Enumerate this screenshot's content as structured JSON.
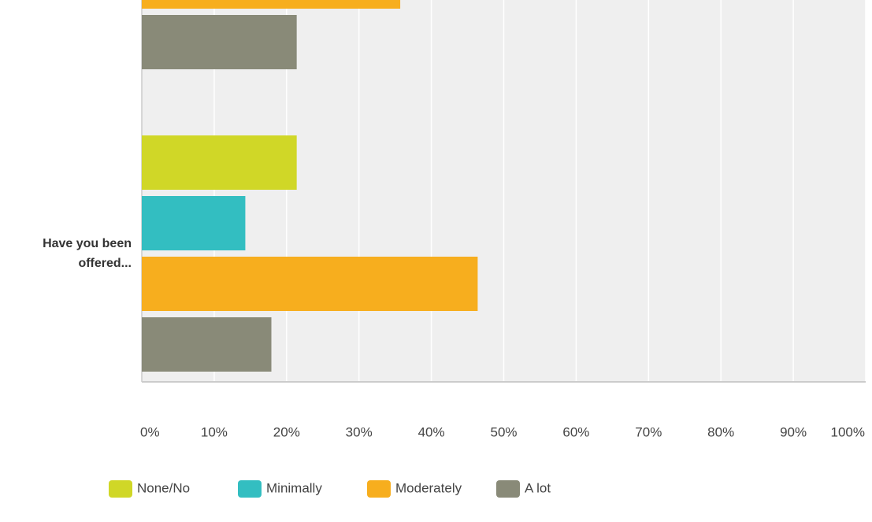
{
  "chart_data": {
    "type": "hbar",
    "categories": [
      null,
      "Have you been offered..."
    ],
    "series": [
      {
        "name": "None/No",
        "color": "#d0d727",
        "values": [
          null,
          21.4
        ]
      },
      {
        "name": "Minimally",
        "color": "#33bec1",
        "values": [
          null,
          14.3
        ]
      },
      {
        "name": "Moderately",
        "color": "#f7ae1e",
        "values": [
          35.7,
          46.4
        ]
      },
      {
        "name": "A lot",
        "color": "#898a78",
        "values": [
          21.4,
          17.9
        ]
      }
    ],
    "xlim": [
      0,
      100
    ],
    "xticks": [
      {
        "value": 0,
        "label": "0%"
      },
      {
        "value": 10,
        "label": "10%"
      },
      {
        "value": 20,
        "label": "20%"
      },
      {
        "value": 30,
        "label": "30%"
      },
      {
        "value": 40,
        "label": "40%"
      },
      {
        "value": 50,
        "label": "50%"
      },
      {
        "value": 60,
        "label": "60%"
      },
      {
        "value": 70,
        "label": "70%"
      },
      {
        "value": 80,
        "label": "80%"
      },
      {
        "value": 90,
        "label": "90%"
      },
      {
        "value": 100,
        "label": "100%"
      }
    ],
    "grid": true,
    "legend": "bottom"
  }
}
